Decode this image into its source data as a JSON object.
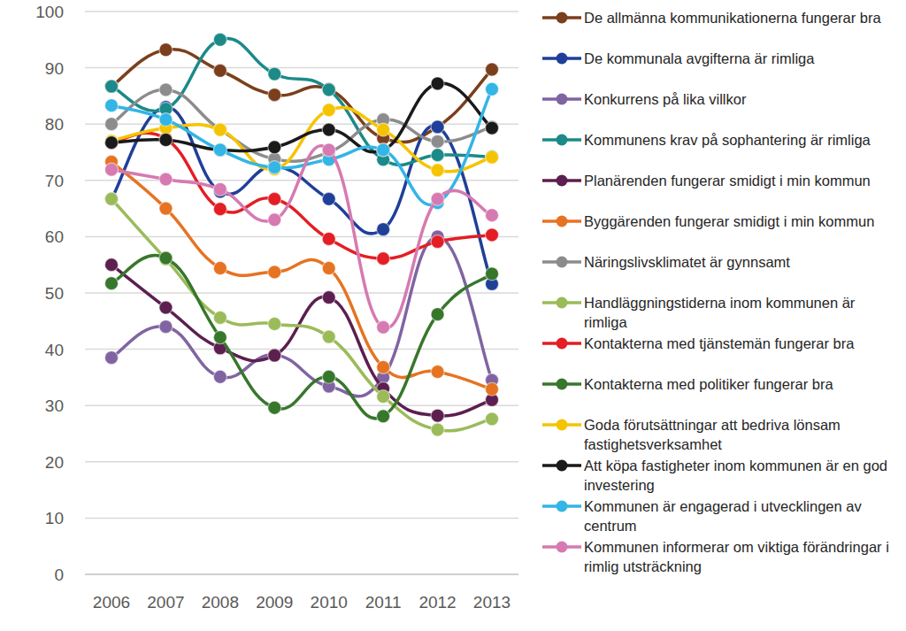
{
  "chart_data": {
    "type": "line",
    "categories": [
      "2006",
      "2007",
      "2008",
      "2009",
      "2010",
      "2011",
      "2012",
      "2013"
    ],
    "ylim": [
      0,
      100
    ],
    "yticks": [
      0,
      10,
      20,
      30,
      40,
      50,
      60,
      70,
      80,
      90,
      100
    ],
    "grid": true,
    "legend": "right",
    "marker": "circle",
    "line_style": "smooth",
    "series": [
      {
        "name": "De allmänna kommunikationerna fungerar bra",
        "color": "#7b3f1d",
        "values": [
          86.7,
          93.2,
          89.5,
          85.2,
          86.2,
          77.5,
          79.5,
          89.7
        ]
      },
      {
        "name": "De kommunala avgifterna är rimliga",
        "color": "#1f3f99",
        "values": [
          66.7,
          83.0,
          68.0,
          72.5,
          66.7,
          61.3,
          79.5,
          51.6
        ]
      },
      {
        "name": "Konkurrens på lika villkor",
        "color": "#8064a2",
        "values": [
          38.5,
          44.0,
          35.1,
          39.0,
          33.4,
          35.0,
          60.0,
          34.5
        ]
      },
      {
        "name": "Kommunens krav på sophantering är rimliga",
        "color": "#1b8a88",
        "values": [
          86.7,
          82.7,
          95.0,
          88.9,
          86.1,
          73.7,
          74.5,
          74.2
        ]
      },
      {
        "name": "Planärenden fungerar smidigt i min kommun",
        "color": "#5c1f4f",
        "values": [
          55.0,
          47.4,
          40.2,
          38.9,
          49.2,
          33.0,
          28.2,
          31.0
        ]
      },
      {
        "name": "Byggärenden fungerar smidigt i min kommun",
        "color": "#e67322",
        "values": [
          73.3,
          65.0,
          54.4,
          53.7,
          54.4,
          36.8,
          36.0,
          32.9
        ]
      },
      {
        "name": "Näringslivsklimatet är gynnsamt",
        "color": "#8c8c8c",
        "values": [
          80.0,
          86.1,
          79.0,
          73.8,
          75.0,
          80.8,
          76.9,
          79.5
        ]
      },
      {
        "name": "Handläggningstiderna inom kommunen är rimliga",
        "color": "#9bbb59",
        "values": [
          66.7,
          56.0,
          45.6,
          44.5,
          42.2,
          31.6,
          25.7,
          27.6
        ]
      },
      {
        "name": "Kontakterna med tjänstemän fungerar bra",
        "color": "#e31e24",
        "values": [
          76.7,
          77.4,
          64.9,
          66.7,
          59.6,
          56.1,
          59.1,
          60.3
        ]
      },
      {
        "name": "Kontakterna med politiker fungerar bra",
        "color": "#37772c",
        "values": [
          51.7,
          56.2,
          42.1,
          29.6,
          35.1,
          28.1,
          46.2,
          53.4
        ]
      },
      {
        "name": "Goda förutsättningar att bedriva lönsam fastighetsverksamhet",
        "color": "#f5c400",
        "values": [
          77.0,
          79.3,
          79.0,
          72.0,
          82.5,
          79.0,
          71.8,
          74.1
        ]
      },
      {
        "name": "Att köpa fastigheter inom kommunen är en god investering",
        "color": "#1a1a1a",
        "values": [
          76.7,
          77.2,
          75.4,
          75.9,
          79.0,
          75.4,
          87.2,
          79.3
        ]
      },
      {
        "name": "Kommunen är engagerad i utvecklingen av centrum",
        "color": "#33b5e5",
        "values": [
          83.3,
          80.8,
          75.4,
          72.3,
          73.7,
          75.4,
          66.0,
          86.2
        ]
      },
      {
        "name": "Kommunen informerar om viktiga förändringar i rimlig utsträckning",
        "color": "#d67ab1",
        "values": [
          71.9,
          70.2,
          68.4,
          63.0,
          75.4,
          43.9,
          66.7,
          63.8
        ]
      }
    ]
  }
}
